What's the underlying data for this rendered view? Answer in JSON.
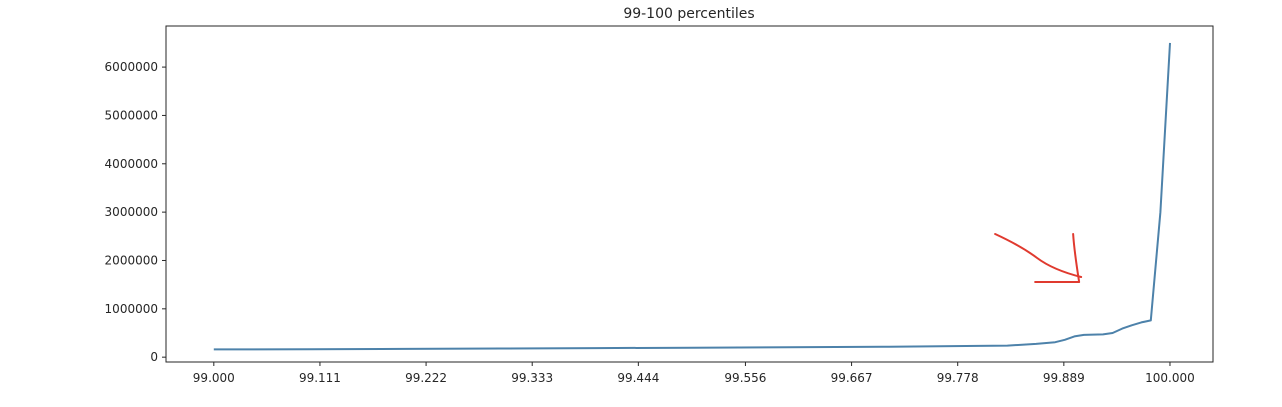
{
  "chart_data": {
    "type": "line",
    "title": "99-100 percentiles",
    "xlabel": "",
    "ylabel": "",
    "xlim": [
      98.95,
      100.045
    ],
    "ylim": [
      -100000,
      6850000
    ],
    "x_ticks": [
      99.0,
      99.111,
      99.222,
      99.333,
      99.444,
      99.556,
      99.667,
      99.778,
      99.889,
      100.0
    ],
    "x_tick_labels": [
      "99.000",
      "99.111",
      "99.222",
      "99.333",
      "99.444",
      "99.556",
      "99.667",
      "99.778",
      "99.889",
      "100.000"
    ],
    "y_ticks": [
      0,
      1000000,
      2000000,
      3000000,
      4000000,
      5000000,
      6000000
    ],
    "y_tick_labels": [
      "0",
      "1000000",
      "2000000",
      "3000000",
      "4000000",
      "5000000",
      "6000000"
    ],
    "grid": false,
    "legend": "none",
    "series": [
      {
        "color": "#4d82aa",
        "x": [
          99.0,
          99.1,
          99.2,
          99.3,
          99.4,
          99.5,
          99.6,
          99.7,
          99.8,
          99.83,
          99.86,
          99.88,
          99.89,
          99.9,
          99.91,
          99.93,
          99.94,
          99.95,
          99.96,
          99.97,
          99.98,
          99.99,
          100.0
        ],
        "y": [
          160000,
          165000,
          172000,
          180000,
          188000,
          196000,
          205000,
          215000,
          232000,
          240000,
          275000,
          310000,
          360000,
          430000,
          460000,
          470000,
          500000,
          590000,
          660000,
          720000,
          760000,
          3000000,
          6500000
        ]
      }
    ],
    "annotation": {
      "type": "hand-drawn-arrow",
      "color": "#e03a2f",
      "points_to_x": 99.905
    }
  }
}
